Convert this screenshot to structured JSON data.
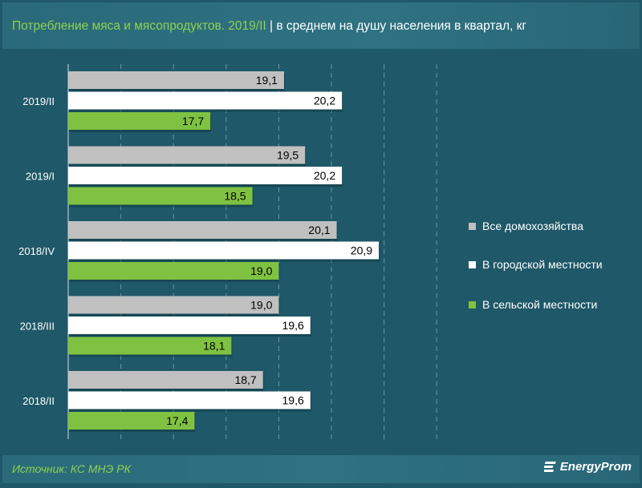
{
  "title": {
    "main": "Потребление мяса и мясопродуктов. 2019/II",
    "sep": " | ",
    "sub": "в среднем на душу населения в квартал, кг"
  },
  "footer": {
    "source": "Источник: КС МНЭ РК",
    "logo": "EnergyProm"
  },
  "colors": {
    "background": "#1f5868",
    "all": "#c0c0c0",
    "urban": "#ffffff",
    "rural": "#7fc241",
    "title_accent": "#8fd14f"
  },
  "chart_data": {
    "type": "bar",
    "orientation": "horizontal",
    "categories": [
      "2019/II",
      "2019/I",
      "2018/IV",
      "2018/III",
      "2018/II"
    ],
    "series": [
      {
        "name": "Все домохозяйства",
        "values": [
          19.1,
          19.5,
          20.1,
          19.0,
          18.7
        ],
        "labels": [
          "19,1",
          "19,5",
          "20,1",
          "19,0",
          "18,7"
        ],
        "color": "#c0c0c0"
      },
      {
        "name": "В городской местности",
        "values": [
          20.2,
          20.2,
          20.9,
          19.6,
          19.6
        ],
        "labels": [
          "20,2",
          "20,2",
          "20,9",
          "19,6",
          "19,6"
        ],
        "color": "#ffffff"
      },
      {
        "name": "В сельской местности",
        "values": [
          17.7,
          18.5,
          19.0,
          18.1,
          17.4
        ],
        "labels": [
          "17,7",
          "18,5",
          "19,0",
          "18,1",
          "17,4"
        ],
        "color": "#7fc241"
      }
    ],
    "xlim": [
      15,
      22
    ],
    "grid": true,
    "legend": "right"
  }
}
